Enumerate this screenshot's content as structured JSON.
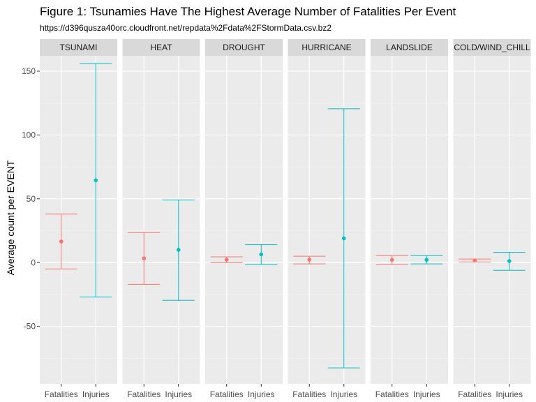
{
  "chart_data": {
    "type": "errorbar",
    "title": "Figure 1: Tsunamies Have The Highest Average Number of Fatalities Per Event",
    "subtitle": "https://d396qusza40orc.cloudfront.net/repdata%2Fdata%2FStormData.csv.bz2",
    "xlabel": "",
    "ylabel": "Average count per EVENT",
    "ylim": [
      -95,
      162
    ],
    "y_ticks": [
      -50,
      0,
      50,
      100,
      150
    ],
    "categories": [
      "Fatalities",
      "Injuries"
    ],
    "colors": {
      "Fatalities": "#F8766D",
      "Injuries": "#00BFC4"
    },
    "grid": true,
    "panels": [
      {
        "name": "TSUNAMI",
        "points": [
          {
            "category": "Fatalities",
            "mean": 16.5,
            "low": -5,
            "high": 38
          },
          {
            "category": "Injuries",
            "mean": 64.5,
            "low": -27,
            "high": 156
          }
        ]
      },
      {
        "name": "HEAT",
        "points": [
          {
            "category": "Fatalities",
            "mean": 3.3,
            "low": -17,
            "high": 23.5
          },
          {
            "category": "Injuries",
            "mean": 10,
            "low": -29.5,
            "high": 49
          }
        ]
      },
      {
        "name": "DROUGHT",
        "points": [
          {
            "category": "Fatalities",
            "mean": 2.3,
            "low": 0,
            "high": 4.5
          },
          {
            "category": "Injuries",
            "mean": 6.5,
            "low": -1.5,
            "high": 14
          }
        ]
      },
      {
        "name": "HURRICANE",
        "points": [
          {
            "category": "Fatalities",
            "mean": 2.3,
            "low": -1,
            "high": 5
          },
          {
            "category": "Injuries",
            "mean": 19,
            "low": -82.5,
            "high": 120.5
          }
        ]
      },
      {
        "name": "LANDSLIDE",
        "points": [
          {
            "category": "Fatalities",
            "mean": 2.2,
            "low": -1.5,
            "high": 5.5
          },
          {
            "category": "Injuries",
            "mean": 2.2,
            "low": -1,
            "high": 5.5
          }
        ]
      },
      {
        "name": "COLD/WIND_CHILL",
        "points": [
          {
            "category": "Fatalities",
            "mean": 1.6,
            "low": 0.5,
            "high": 2.8
          },
          {
            "category": "Injuries",
            "mean": 1.2,
            "low": -6,
            "high": 8
          }
        ]
      }
    ]
  }
}
